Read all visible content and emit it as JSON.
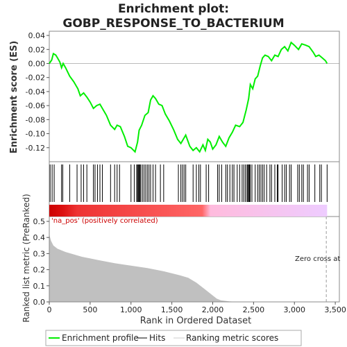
{
  "chart_data": [
    {
      "type": "line",
      "title": "Enrichment plot:",
      "subtitle": "GOBP_RESPONSE_TO_BACTERIUM",
      "y_label": "Enrichment score (ES)",
      "xlim": [
        0,
        3550
      ],
      "ylim": [
        -0.14,
        0.046
      ],
      "yticks": [
        0.04,
        0.02,
        {
          "value": 0,
          "label": "0.00"
        },
        -0.02,
        -0.04,
        -0.06,
        -0.08,
        {
          "value": -0.1,
          "label": "-0.10"
        },
        -0.12
      ],
      "series": [
        {
          "name": "Enrichment profile",
          "color": "#00ee00",
          "x": [
            0,
            30,
            50,
            80,
            100,
            130,
            150,
            170,
            200,
            250,
            300,
            350,
            380,
            420,
            460,
            500,
            540,
            580,
            620,
            660,
            700,
            750,
            800,
            830,
            870,
            920,
            960,
            1000,
            1050,
            1080,
            1100,
            1130,
            1170,
            1210,
            1240,
            1270,
            1300,
            1340,
            1380,
            1420,
            1470,
            1520,
            1570,
            1610,
            1650,
            1670,
            1720,
            1760,
            1800,
            1840,
            1880,
            1910,
            1940,
            1970,
            2000,
            2040,
            2080,
            2120,
            2160,
            2200,
            2240,
            2280,
            2330,
            2370,
            2410,
            2440,
            2460,
            2490,
            2520,
            2550,
            2580,
            2610,
            2640,
            2680,
            2720,
            2760,
            2800,
            2840,
            2880,
            2920,
            2960,
            3000,
            3050,
            3090,
            3140,
            3180,
            3230,
            3260,
            3300,
            3340,
            3380,
            3400
          ],
          "values": [
            0,
            0.005,
            0.014,
            0.012,
            0.008,
            0.002,
            -0.006,
            0,
            -0.006,
            -0.018,
            -0.026,
            -0.036,
            -0.046,
            -0.042,
            -0.048,
            -0.055,
            -0.064,
            -0.06,
            -0.058,
            -0.066,
            -0.074,
            -0.088,
            -0.094,
            -0.088,
            -0.09,
            -0.104,
            -0.118,
            -0.12,
            -0.126,
            -0.112,
            -0.095,
            -0.088,
            -0.074,
            -0.07,
            -0.052,
            -0.046,
            -0.05,
            -0.058,
            -0.06,
            -0.072,
            -0.082,
            -0.094,
            -0.108,
            -0.114,
            -0.106,
            -0.102,
            -0.118,
            -0.124,
            -0.12,
            -0.126,
            -0.116,
            -0.124,
            -0.108,
            -0.112,
            -0.122,
            -0.116,
            -0.104,
            -0.112,
            -0.118,
            -0.106,
            -0.098,
            -0.088,
            -0.09,
            -0.084,
            -0.066,
            -0.05,
            -0.03,
            -0.036,
            -0.022,
            -0.018,
            -0.004,
            0.008,
            0.012,
            0.01,
            0.004,
            0.012,
            0.01,
            0.02,
            0.024,
            0.018,
            0.03,
            0.026,
            0.02,
            0.028,
            0.026,
            0.024,
            0.016,
            0.01,
            0.012,
            0.008,
            0.004,
            0
          ]
        }
      ]
    },
    {
      "type": "rug",
      "name": "Hits",
      "color": "#000000",
      "xlim": [
        0,
        3550
      ],
      "x": [
        10,
        35,
        60,
        150,
        165,
        250,
        340,
        390,
        420,
        460,
        540,
        560,
        590,
        620,
        650,
        750,
        800,
        830,
        860,
        1000,
        1040,
        1070,
        1080,
        1090,
        1100,
        1110,
        1120,
        1140,
        1160,
        1180,
        1200,
        1220,
        1240,
        1270,
        1300,
        1360,
        1400,
        1580,
        1610,
        1630,
        1650,
        1670,
        1760,
        1800,
        1830,
        1850,
        1920,
        1950,
        2060,
        2080,
        2110,
        2160,
        2180,
        2210,
        2240,
        2260,
        2300,
        2330,
        2360,
        2380,
        2400,
        2420,
        2430,
        2440,
        2450,
        2460,
        2480,
        2520,
        2550,
        2570,
        2590,
        2610,
        2630,
        2660,
        2700,
        2720,
        2760,
        2790,
        2800,
        2850,
        2880,
        2900,
        2940,
        2960,
        3040,
        3060,
        3090,
        3110,
        3160,
        3180,
        3250,
        3310,
        3330,
        3400
      ]
    },
    {
      "type": "area",
      "y_label": "Ranked list metric (PreRanked)",
      "x_label": "Rank in Ordered Dataset",
      "annotation": "'na_pos' (positively correlated)",
      "zero_cross_label": "Zero cross at",
      "zero_cross": 3390,
      "legend_extra": "Ranking metric scores",
      "color": "#c0c0c0",
      "xlim": [
        0,
        3550
      ],
      "ylim": [
        0,
        0.53
      ],
      "xticks": [
        0,
        500,
        {
          "value": 1000,
          "label": "1,000"
        },
        {
          "value": 1500,
          "label": "1,500"
        },
        {
          "value": 2000,
          "label": "2,000"
        },
        {
          "value": 2500,
          "label": "2,500"
        },
        {
          "value": 3000,
          "label": "3,000"
        },
        {
          "value": 3500,
          "label": "3,500"
        }
      ],
      "yticks": [
        {
          "value": 0,
          "label": "0.0"
        },
        0.1,
        0.2,
        0.3,
        0.4,
        0.5
      ],
      "x": [
        0,
        20,
        50,
        100,
        200,
        400,
        600,
        800,
        1000,
        1200,
        1400,
        1600,
        1700,
        1800,
        1900,
        2000,
        2050,
        2100,
        2200,
        2300,
        3400
      ],
      "values": [
        0.42,
        0.38,
        0.35,
        0.33,
        0.31,
        0.28,
        0.26,
        0.24,
        0.225,
        0.21,
        0.19,
        0.165,
        0.15,
        0.12,
        0.08,
        0.04,
        0.02,
        0.01,
        0.003,
        0,
        0
      ]
    }
  ]
}
